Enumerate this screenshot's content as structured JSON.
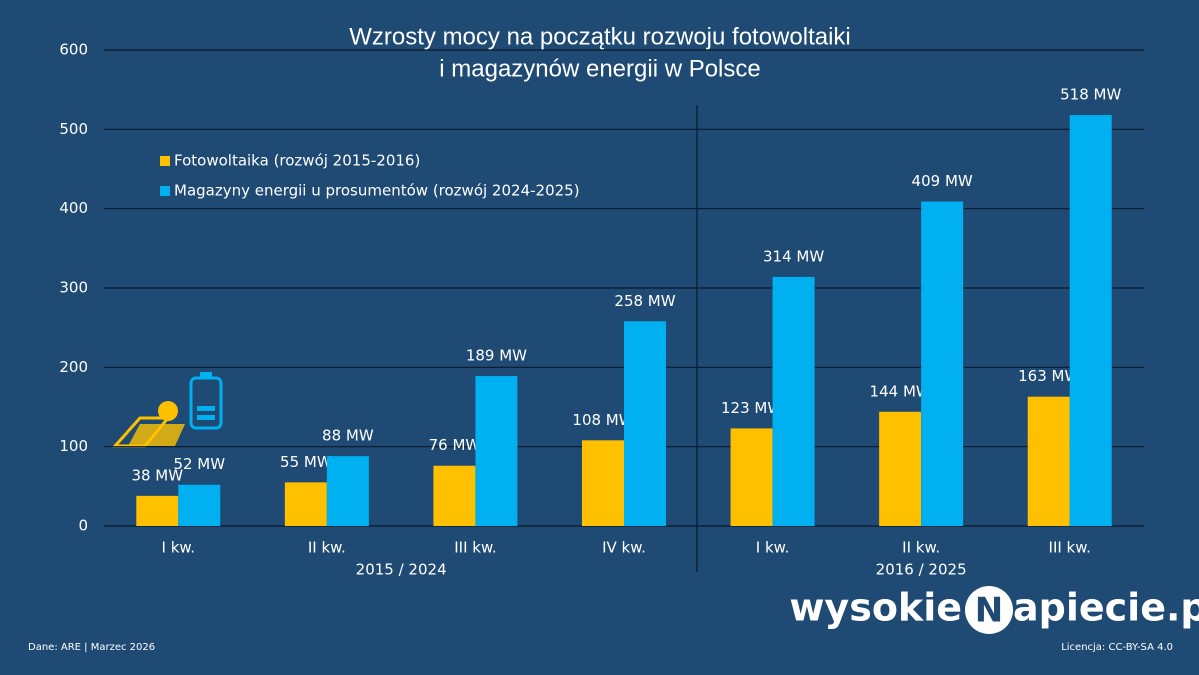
{
  "chart_data": {
    "type": "bar",
    "title": "Wzrosty mocy na początku rozwoju fotowoltaiki",
    "subtitle": "i magazynów energii w Polsce",
    "categories": [
      "I kw.",
      "II kw.",
      "III kw.",
      "IV kw.",
      "I kw.",
      "II kw.",
      "III kw."
    ],
    "groups": [
      {
        "label": "2015 / 2024",
        "count": 4
      },
      {
        "label": "2016 / 2025",
        "count": 3
      }
    ],
    "series": [
      {
        "name": "Fotowoltaika (rozwój 2015-2016)",
        "color": "#ffc000",
        "values": [
          38,
          55,
          76,
          108,
          123,
          144,
          163
        ],
        "value_labels": [
          "38 MW",
          "55 MW",
          "76 MW",
          "108 MW",
          "123 MW",
          "144 MW",
          "163 MW"
        ]
      },
      {
        "name": "Magazyny energii u prosumentów (rozwój 2024-2025)",
        "color": "#00b0f0",
        "values": [
          52,
          88,
          189,
          258,
          314,
          409,
          518
        ],
        "value_labels": [
          "52 MW",
          "88 MW",
          "189 MW",
          "258 MW",
          "314 MW",
          "409 MW",
          "518 MW"
        ]
      }
    ],
    "ylim": [
      0,
      600
    ],
    "yticks": [
      0,
      100,
      200,
      300,
      400,
      500,
      600
    ],
    "grid": true,
    "legend": "upper left"
  },
  "footer": {
    "source": "Dane: ARE   |   Marzec 2026",
    "license": "Licencja: CC-BY-SA 4.0",
    "logo_left": "wysokie",
    "logo_mark": "N",
    "logo_right": "apiecie.pl"
  }
}
